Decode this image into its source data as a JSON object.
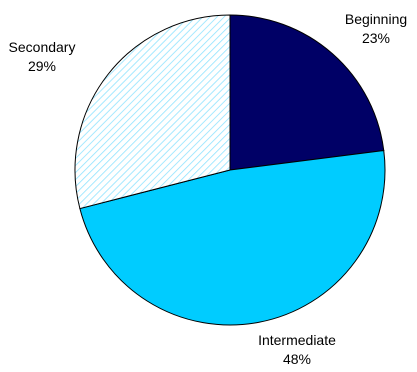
{
  "chart_data": {
    "type": "pie",
    "slices": [
      {
        "label": "Beginning",
        "percent_label": "23%",
        "value": 23,
        "color": "#000066",
        "pattern": "solid"
      },
      {
        "label": "Intermediate",
        "percent_label": "48%",
        "value": 48,
        "color": "#00CCFF",
        "pattern": "solid"
      },
      {
        "label": "Secondary",
        "percent_label": "29%",
        "value": 29,
        "color": "#CCFFFF",
        "pattern": "diagonal-hatch"
      }
    ],
    "start": "12 o'clock",
    "direction": "clockwise",
    "legend": "none"
  }
}
